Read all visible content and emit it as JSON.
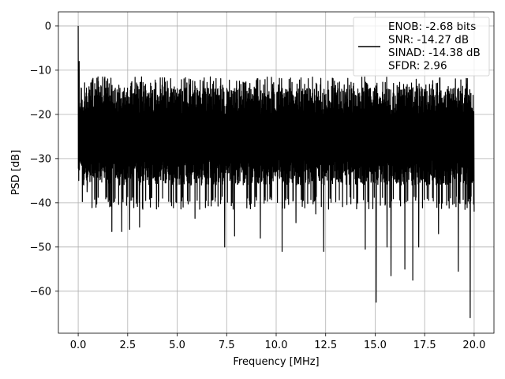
{
  "chart_data": {
    "type": "line",
    "xlabel": "Frequency [MHz]",
    "ylabel": "PSD [dB]",
    "xlim": [
      -1.0,
      21.0
    ],
    "ylim": [
      -69.5,
      3.2
    ],
    "grid": true,
    "xticks": [
      0.0,
      2.5,
      5.0,
      7.5,
      10.0,
      12.5,
      15.0,
      17.5,
      20.0
    ],
    "xtick_labels": [
      "0.0",
      "2.5",
      "5.0",
      "7.5",
      "10.0",
      "12.5",
      "15.0",
      "17.5",
      "20.0"
    ],
    "yticks": [
      0,
      -10,
      -20,
      -30,
      -40,
      -50,
      -60
    ],
    "ytick_labels": [
      "0",
      "−10",
      "−20",
      "−30",
      "−40",
      "−50",
      "−60"
    ],
    "legend": {
      "position": "top-right",
      "entries": [
        "ENOB: -2.68 bits",
        "SNR: -14.27 dB",
        "SINAD: -14.38 dB",
        "SFDR: 2.96"
      ]
    },
    "series": [
      {
        "color": "#000000",
        "x_range": [
          0.0,
          20.0
        ],
        "noise_band": {
          "upper_db": -17,
          "lower_db": -34,
          "typical_peak_db": -13,
          "typical_trough_db": -40
        },
        "peaks": [
          {
            "x": 0.0,
            "y": 0.0
          },
          {
            "x": 0.05,
            "y": -8
          },
          {
            "x": 0.1,
            "y": -11
          },
          {
            "x": 0.15,
            "y": -14
          },
          {
            "x": 0.25,
            "y": -21
          },
          {
            "x": 1.0,
            "y": -11.5
          },
          {
            "x": 3.2,
            "y": -11.5
          },
          {
            "x": 4.5,
            "y": -12.5
          },
          {
            "x": 6.3,
            "y": -12.5
          },
          {
            "x": 8.0,
            "y": -12.5
          },
          {
            "x": 13.5,
            "y": -15
          },
          {
            "x": 17.5,
            "y": -15
          }
        ],
        "dips": [
          {
            "x": 0.1,
            "y": -27.5
          },
          {
            "x": 0.45,
            "y": -37.5
          },
          {
            "x": 0.9,
            "y": -41
          },
          {
            "x": 1.7,
            "y": -46.5
          },
          {
            "x": 2.2,
            "y": -46.5
          },
          {
            "x": 2.6,
            "y": -46
          },
          {
            "x": 3.1,
            "y": -45.5
          },
          {
            "x": 5.9,
            "y": -43.5
          },
          {
            "x": 7.4,
            "y": -50
          },
          {
            "x": 7.9,
            "y": -47.5
          },
          {
            "x": 9.2,
            "y": -48
          },
          {
            "x": 10.3,
            "y": -51
          },
          {
            "x": 11.0,
            "y": -44.5
          },
          {
            "x": 12.0,
            "y": -42.5
          },
          {
            "x": 12.4,
            "y": -51
          },
          {
            "x": 14.5,
            "y": -50.5
          },
          {
            "x": 15.05,
            "y": -62.5
          },
          {
            "x": 15.6,
            "y": -50
          },
          {
            "x": 15.8,
            "y": -56.5
          },
          {
            "x": 16.5,
            "y": -55
          },
          {
            "x": 16.9,
            "y": -57.5
          },
          {
            "x": 17.2,
            "y": -50
          },
          {
            "x": 18.2,
            "y": -47
          },
          {
            "x": 19.2,
            "y": -55.5
          },
          {
            "x": 19.8,
            "y": -66
          },
          {
            "x": 20.0,
            "y": -42
          }
        ]
      }
    ]
  }
}
